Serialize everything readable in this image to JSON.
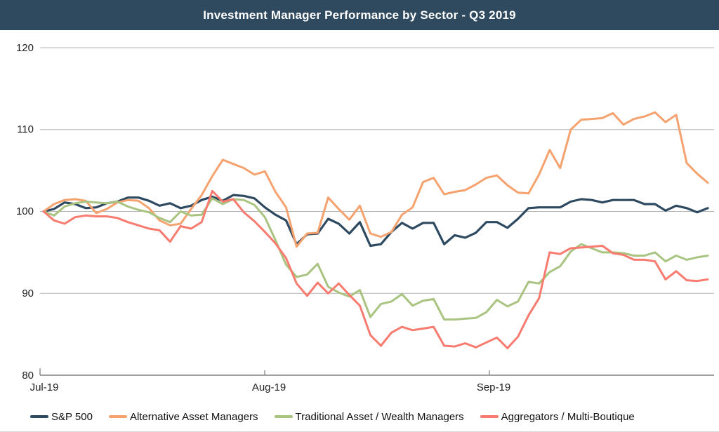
{
  "header": {
    "title": "Investment Manager Performance by Sector - Q3 2019"
  },
  "colors": {
    "title_bar_bg": "#2F4A5F",
    "title_text": "#FFFFFF",
    "gridline": "#B4B4B4",
    "axis_line": "#808080",
    "label_text": "#1F1F1F"
  },
  "chart_data": {
    "type": "line",
    "title": "Investment Manager Performance by Sector - Q3 2019",
    "subtitle": "",
    "xlabel": "",
    "ylabel": "",
    "indexed_to": 100,
    "grid": "horizontal",
    "legend_position": "bottom",
    "x_axis": {
      "tick_labels": [
        "Jul-19",
        "Aug-19",
        "Sep-19"
      ],
      "points_per_series": 64,
      "coverage": "daily points from start of Jul-19 through end of Sep-19"
    },
    "y_axis": {
      "min": 80,
      "max": 120,
      "ticks": [
        120,
        110,
        100,
        90,
        80
      ],
      "tick_labels": [
        "120",
        "110",
        "100",
        "90",
        "80"
      ]
    },
    "series": [
      {
        "name": "S&P 500",
        "color": "#2E4A60",
        "values": [
          100.0,
          100.3,
          101.1,
          100.9,
          100.4,
          100.5,
          101.0,
          101.2,
          101.7,
          101.7,
          101.3,
          100.7,
          101.0,
          100.4,
          100.7,
          101.4,
          101.8,
          101.3,
          102.0,
          101.9,
          101.6,
          100.5,
          99.6,
          98.9,
          96.0,
          97.2,
          97.3,
          99.1,
          98.5,
          97.3,
          98.7,
          95.8,
          96.0,
          97.5,
          98.6,
          97.9,
          98.6,
          98.6,
          96.0,
          97.1,
          96.8,
          97.4,
          98.7,
          98.7,
          98.0,
          99.1,
          100.4,
          100.5,
          100.5,
          100.5,
          101.2,
          101.5,
          101.4,
          101.1,
          101.4,
          101.4,
          101.4,
          100.9,
          100.9,
          100.1,
          100.7,
          100.4,
          99.9,
          100.4
        ]
      },
      {
        "name": "Alternative Asset Managers",
        "color": "#F6A26E",
        "values": [
          100.0,
          100.9,
          101.4,
          101.5,
          101.3,
          99.8,
          100.3,
          101.1,
          101.4,
          101.3,
          100.4,
          98.9,
          98.3,
          98.5,
          100.3,
          102.0,
          104.3,
          106.3,
          105.8,
          105.3,
          104.5,
          104.9,
          102.4,
          100.5,
          95.7,
          97.3,
          97.4,
          101.7,
          100.3,
          99.0,
          100.7,
          97.3,
          96.9,
          97.5,
          99.6,
          100.5,
          103.6,
          104.1,
          102.1,
          102.4,
          102.6,
          103.3,
          104.1,
          104.4,
          103.2,
          102.3,
          102.2,
          104.5,
          107.5,
          105.3,
          110.0,
          111.2,
          111.3,
          111.4,
          112.0,
          110.6,
          111.3,
          111.6,
          112.1,
          110.9,
          111.8,
          105.9,
          104.6,
          103.5
        ]
      },
      {
        "name": "Traditional Asset / Wealth Managers",
        "color": "#A9C480",
        "values": [
          100.0,
          99.5,
          100.6,
          101.0,
          101.2,
          101.1,
          101.0,
          101.2,
          100.6,
          100.2,
          99.9,
          99.2,
          98.7,
          100.0,
          99.5,
          99.6,
          101.6,
          100.9,
          101.5,
          101.4,
          100.8,
          99.3,
          96.5,
          93.5,
          92.0,
          92.3,
          93.6,
          90.8,
          90.1,
          89.6,
          90.4,
          87.1,
          88.7,
          89.0,
          89.9,
          88.5,
          89.1,
          89.3,
          86.8,
          86.8,
          86.9,
          87.0,
          87.7,
          89.2,
          88.4,
          89.0,
          91.4,
          91.2,
          92.6,
          93.3,
          95.1,
          96.0,
          95.5,
          95.0,
          95.0,
          94.9,
          94.6,
          94.6,
          95.0,
          93.9,
          94.6,
          94.1,
          94.4,
          94.6
        ]
      },
      {
        "name": "Aggregators / Multi-Boutique",
        "color": "#F97B70",
        "values": [
          100.0,
          98.9,
          98.5,
          99.3,
          99.5,
          99.4,
          99.4,
          99.2,
          98.7,
          98.3,
          97.9,
          97.7,
          96.3,
          98.2,
          97.9,
          98.7,
          102.5,
          101.2,
          101.5,
          99.9,
          98.8,
          97.5,
          96.1,
          94.3,
          91.2,
          89.7,
          91.3,
          90.0,
          91.2,
          89.8,
          88.5,
          84.9,
          83.6,
          85.2,
          85.9,
          85.5,
          85.7,
          85.9,
          83.6,
          83.5,
          83.9,
          83.4,
          84.0,
          84.6,
          83.3,
          84.7,
          87.3,
          89.4,
          95.0,
          94.8,
          95.5,
          95.6,
          95.7,
          95.8,
          94.9,
          94.7,
          94.1,
          94.1,
          93.9,
          91.7,
          92.7,
          91.6,
          91.5,
          91.7
        ]
      }
    ]
  }
}
